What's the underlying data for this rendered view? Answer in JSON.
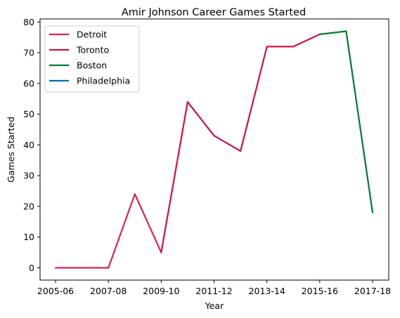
{
  "chart_data": {
    "type": "line",
    "title": "Amir Johnson Career Games Started",
    "xlabel": "Year",
    "ylabel": "Games Started",
    "categories": [
      "2005-06",
      "2006-07",
      "2007-08",
      "2008-09",
      "2009-10",
      "2010-11",
      "2011-12",
      "2012-13",
      "2013-14",
      "2014-15",
      "2015-16",
      "2016-17",
      "2017-18"
    ],
    "xticks": [
      "2005-06",
      "2007-08",
      "2009-10",
      "2011-12",
      "2013-14",
      "2015-16",
      "2017-18"
    ],
    "ylim": [
      -4,
      81
    ],
    "yticks": [
      0,
      10,
      20,
      30,
      40,
      50,
      60,
      70,
      80
    ],
    "grid": false,
    "legend_position": "top-left",
    "series": [
      {
        "name": "Detroit",
        "color": "#E0214F",
        "x": [
          "2005-06",
          "2006-07",
          "2007-08",
          "2008-09",
          "2009-10"
        ],
        "values": [
          0,
          0,
          0,
          24,
          5
        ]
      },
      {
        "name": "Toronto",
        "color": "#CE1141",
        "x": [
          "2009-10",
          "2010-11",
          "2011-12",
          "2012-13",
          "2013-14",
          "2014-15",
          "2015-16"
        ],
        "values": [
          5,
          54,
          43,
          38,
          72,
          72,
          76
        ]
      },
      {
        "name": "Boston",
        "color": "#007A33",
        "x": [
          "2015-16",
          "2016-17",
          "2017-18"
        ],
        "values": [
          76,
          77,
          18
        ]
      },
      {
        "name": "Philadelphia",
        "color": "#006BB6",
        "x": [],
        "values": []
      }
    ]
  }
}
